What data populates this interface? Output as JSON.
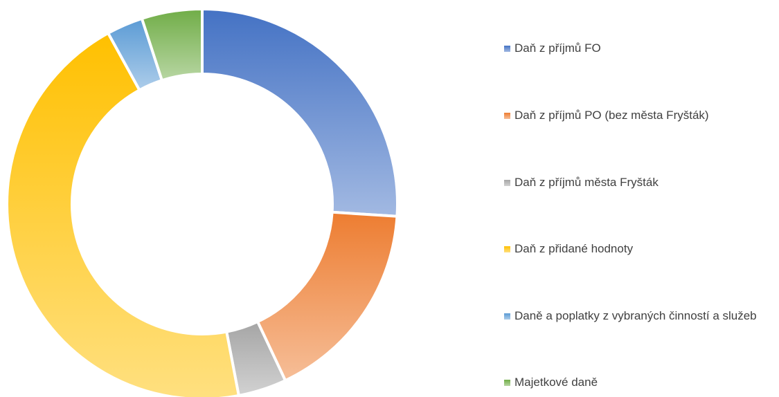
{
  "chart_data": {
    "type": "donut",
    "categories": [
      "Daň z příjmů FO",
      "Daň z příjmů PO (bez města Fryšták)",
      "Daň z příjmů města Fryšták",
      "Daň z přidané hodnoty",
      "Daně a poplatky z vybraných činností a služeb",
      "Majetkové daně"
    ],
    "values": [
      26,
      17,
      4,
      45,
      3,
      5
    ],
    "colors": [
      "#4472c4",
      "#ed7d31",
      "#a5a5a5",
      "#ffc000",
      "#5b9bd5",
      "#70ad47"
    ],
    "legend": "right"
  }
}
